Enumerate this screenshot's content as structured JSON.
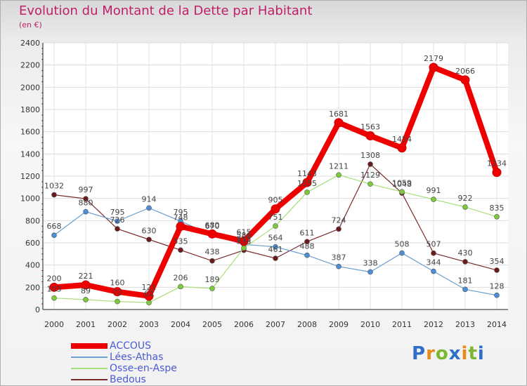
{
  "title": "Evolution du Montant de la Dette par Habitant",
  "subtitle": "(en €)",
  "brand": {
    "text": "Proxiti",
    "letter_colors": [
      "#2f6fc8",
      "#e8891c",
      "#7ab832",
      "#2f6fc8",
      "#e8891c",
      "#7ab832",
      "#2f6fc8"
    ]
  },
  "chart_data": {
    "type": "line",
    "title": "Evolution du Montant de la Dette par Habitant",
    "subtitle": "(en €)",
    "x": [
      "2000",
      "2001",
      "2002",
      "2003",
      "2004",
      "2005",
      "2006",
      "2007",
      "2008",
      "2009",
      "2010",
      "2011",
      "2012",
      "2013",
      "2014"
    ],
    "y_ticks": [
      "0",
      "200",
      "400",
      "600",
      "800",
      "1000",
      "1200",
      "1400",
      "1600",
      "1800",
      "2000",
      "2200",
      "2400"
    ],
    "ylim": [
      0,
      2400
    ],
    "grid": true,
    "legend_position": "bottom-left",
    "series": [
      {
        "name": "ACCOUS",
        "color": "#ee0000",
        "marker": "#ee0000",
        "values": [
          200,
          221,
          160,
          121,
          748,
          680,
          615,
          905,
          1143,
          1681,
          1563,
          1454,
          2179,
          2066,
          1234
        ]
      },
      {
        "name": "Lées-Athas",
        "color": "#6a9fd0",
        "marker": "#4b8fd8",
        "values": [
          668,
          880,
          795,
          914,
          795,
          670,
          586,
          564,
          488,
          387,
          338,
          508,
          344,
          181,
          128
        ]
      },
      {
        "name": "Osse-en-Aspe",
        "color": "#a6df7a",
        "marker": "#7ccc3a",
        "values": [
          103,
          89,
          72,
          62,
          206,
          189,
          553,
          751,
          1055,
          1211,
          1129,
          1059,
          991,
          922,
          835
        ]
      },
      {
        "name": "Bedous",
        "color": "#7a2a2a",
        "marker": "#6a1a1a",
        "values": [
          1032,
          997,
          726,
          630,
          535,
          438,
          533,
          461,
          611,
          724,
          1308,
          1048,
          507,
          430,
          354
        ]
      }
    ],
    "data_labels": [
      [
        "200",
        "221",
        "160",
        "121",
        "748",
        "680",
        "615",
        "905",
        "1143",
        "1681",
        "1563",
        "1454",
        "2179",
        "2066",
        "1234"
      ],
      [
        "668",
        "880",
        "795",
        "914",
        "795",
        "670",
        "586",
        "564",
        "488",
        "387",
        "338",
        "508",
        "344",
        "181",
        "128"
      ],
      [
        "103",
        "89",
        "72",
        "62",
        "206",
        "189",
        "553",
        "751",
        "1055",
        "1211",
        "1129",
        "1059",
        "991",
        "922",
        "835"
      ],
      [
        "1032",
        "997",
        "726",
        "630",
        "535",
        "438",
        "533",
        "461",
        "611",
        "724",
        "1308",
        "1048",
        "507",
        "430",
        "354"
      ]
    ]
  }
}
